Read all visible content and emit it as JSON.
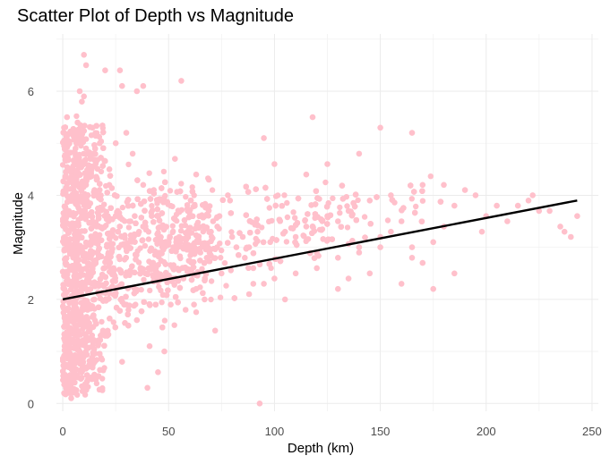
{
  "chart_data": {
    "type": "scatter",
    "title": "Scatter Plot of Depth vs Magnitude",
    "xlabel": "Depth (km)",
    "ylabel": "Magnitude",
    "xlim": [
      -3,
      253
    ],
    "ylim": [
      -0.15,
      7.1
    ],
    "x_ticks": [
      0,
      50,
      100,
      150,
      200,
      250
    ],
    "y_ticks": [
      0,
      2,
      4,
      6
    ],
    "grid": true,
    "legend": "none",
    "point_color": "#ffc0cb",
    "line_color": "#000000",
    "trend_line": {
      "type": "linear",
      "x": [
        0,
        243
      ],
      "y": [
        2.0,
        3.9
      ]
    },
    "points": {
      "x": [
        10,
        11,
        20,
        27,
        38,
        56,
        28,
        35,
        95,
        118,
        150,
        165,
        180,
        190,
        195,
        205,
        215,
        222,
        230,
        237,
        243,
        175,
        160,
        145,
        130,
        170,
        185,
        115,
        125,
        140,
        93,
        130,
        135,
        120,
        155,
        165,
        100,
        110,
        105,
        62,
        72,
        48,
        45,
        40,
        3,
        5,
        8,
        12,
        15,
        6,
        9,
        14,
        18,
        22,
        25,
        30,
        33,
        38,
        42,
        47,
        52,
        58,
        63,
        68,
        73,
        78,
        85,
        90,
        4,
        7,
        13,
        17,
        21,
        28,
        35,
        44,
        55,
        65,
        75,
        88,
        2,
        6,
        11,
        16,
        24,
        31,
        41,
        51,
        61,
        71,
        82,
        95,
        5,
        10,
        19,
        29,
        39,
        49,
        59,
        69,
        79,
        92,
        1,
        8,
        14,
        23,
        32,
        43,
        53,
        63,
        74,
        86,
        3,
        9,
        15,
        26,
        36,
        46,
        57,
        67,
        4,
        12,
        20,
        30,
        40,
        50,
        6,
        13,
        22,
        34,
        7,
        11,
        16,
        9,
        14,
        8,
        10,
        150,
        160,
        140,
        180,
        200,
        220,
        165,
        175,
        198,
        210,
        225,
        235,
        240,
        185,
        170,
        155,
        145,
        135,
        125,
        115,
        105,
        98,
        88,
        80,
        70,
        120,
        130,
        140,
        150,
        110,
        100,
        90
      ],
      "y": [
        6.7,
        6.5,
        6.4,
        6.4,
        6.1,
        6.2,
        6.1,
        6.0,
        5.1,
        5.5,
        5.3,
        5.2,
        4.2,
        4.1,
        4.0,
        3.8,
        3.8,
        4.0,
        3.7,
        3.3,
        3.6,
        2.2,
        2.3,
        2.5,
        2.2,
        2.7,
        2.5,
        4.4,
        4.6,
        4.8,
        0.0,
        3.5,
        2.4,
        2.9,
        3.3,
        3.0,
        4.6,
        3.2,
        2.0,
        1.9,
        1.4,
        1.0,
        0.6,
        0.3,
        0.2,
        0.5,
        1.0,
        1.5,
        2.0,
        2.5,
        3.0,
        3.5,
        4.0,
        4.5,
        5.0,
        5.2,
        4.8,
        4.2,
        3.6,
        3.0,
        2.4,
        1.8,
        2.2,
        2.8,
        3.4,
        4.0,
        3.2,
        2.6,
        4.5,
        3.8,
        2.9,
        2.1,
        1.3,
        0.8,
        1.6,
        2.4,
        3.2,
        2.9,
        2.5,
        2.1,
        5.5,
        4.9,
        4.2,
        3.4,
        2.6,
        1.8,
        1.1,
        1.9,
        2.7,
        3.5,
        3.0,
        2.3,
        0.4,
        0.9,
        1.4,
        1.9,
        2.5,
        3.1,
        3.7,
        4.3,
        3.9,
        3.3,
        1.2,
        1.7,
        2.3,
        2.9,
        3.5,
        4.1,
        4.7,
        4.4,
        3.6,
        2.8,
        5.0,
        4.6,
        4.1,
        3.7,
        3.3,
        2.9,
        2.4,
        2.0,
        0.1,
        0.7,
        1.3,
        1.9,
        2.5,
        3.1,
        5.2,
        4.7,
        4.2,
        3.6,
        5.4,
        4.9,
        4.3,
        5.8,
        5.3,
        6.0,
        5.9,
        3.2,
        3.5,
        3.0,
        3.4,
        3.6,
        3.9,
        2.8,
        3.1,
        3.3,
        3.5,
        3.7,
        3.4,
        3.2,
        3.8,
        4.2,
        4.0,
        3.9,
        3.7,
        3.6,
        3.4,
        3.3,
        3.1,
        3.0,
        3.2,
        3.3,
        2.6,
        2.8,
        2.9,
        3.0,
        2.5,
        2.4,
        2.3
      ]
    }
  }
}
